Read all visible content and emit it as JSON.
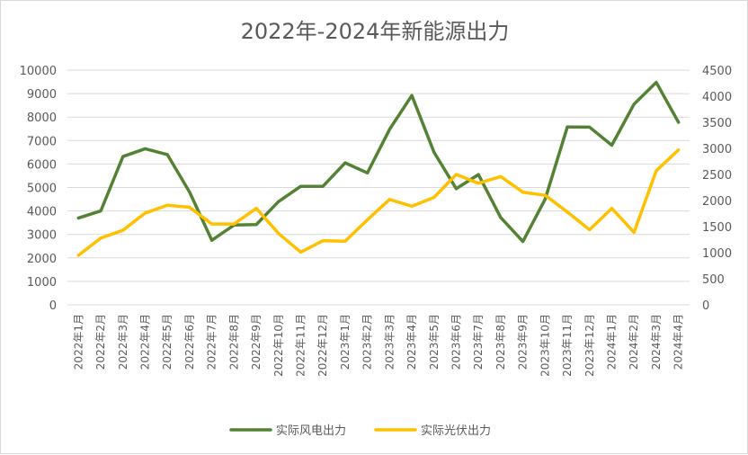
{
  "chart_data": {
    "type": "line",
    "title": "2022年-2024年新能源出力",
    "xlabel": "",
    "ylabel": "",
    "categories": [
      "2022年1月",
      "2022年2月",
      "2022年3月",
      "2022年4月",
      "2022年5月",
      "2022年6月",
      "2022年7月",
      "2022年8月",
      "2022年9月",
      "2022年10月",
      "2022年11月",
      "2022年12月",
      "2023年1月",
      "2023年2月",
      "2023年3月",
      "2023年4月",
      "2023年5月",
      "2023年6月",
      "2023年7月",
      "2023年8月",
      "2023年9月",
      "2023年10月",
      "2023年11月",
      "2023年12月",
      "2024年1月",
      "2024年2月",
      "2024年3月",
      "2024年4月"
    ],
    "ylim_left": [
      0,
      10000
    ],
    "yticks_left": [
      0,
      1000,
      2000,
      3000,
      4000,
      5000,
      6000,
      7000,
      8000,
      9000,
      10000
    ],
    "ylim_right": [
      0,
      4500
    ],
    "yticks_right": [
      0,
      500,
      1000,
      1500,
      2000,
      2500,
      3000,
      3500,
      4000,
      4500
    ],
    "grid": true,
    "legend_position": "bottom",
    "series": [
      {
        "name": "实际风电出力",
        "axis": "left",
        "color": "#548235",
        "values": [
          3700,
          4000,
          6320,
          6650,
          6400,
          4800,
          2750,
          3400,
          3420,
          4400,
          5050,
          5050,
          6050,
          5620,
          7480,
          8920,
          6500,
          4950,
          5550,
          3720,
          2700,
          4500,
          7580,
          7570,
          6800,
          8550,
          9480,
          7780
        ]
      },
      {
        "name": "实际光伏出力",
        "axis": "right",
        "color": "#ffc000",
        "values": [
          950,
          1280,
          1430,
          1760,
          1910,
          1870,
          1550,
          1550,
          1850,
          1370,
          1010,
          1230,
          1220,
          1630,
          2020,
          1890,
          2060,
          2500,
          2330,
          2460,
          2160,
          2100,
          1780,
          1440,
          1850,
          1390,
          2570,
          2970
        ]
      }
    ]
  }
}
